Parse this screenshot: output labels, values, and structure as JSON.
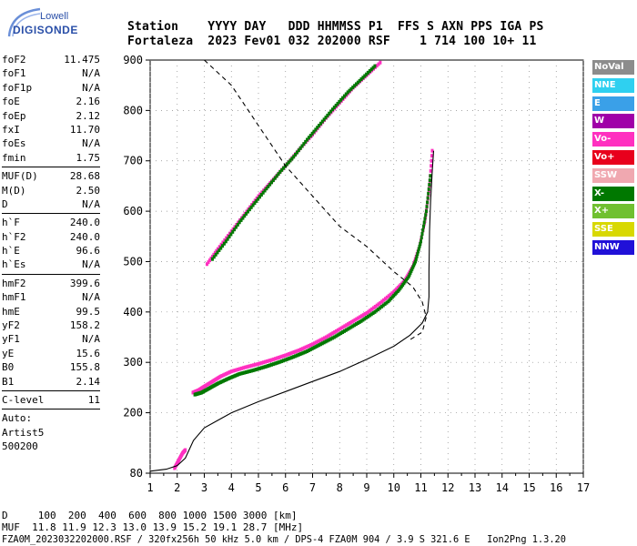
{
  "logo": {
    "top": "Lowell",
    "bottom": "DIGISONDE"
  },
  "header": {
    "line1": "Station    YYYY DAY   DDD HHMMSS P1  FFS S AXN PPS IGA PS",
    "line2": "Fortaleza  2023 Fev01 032 202000 RSF    1 714 100 10+ 11"
  },
  "params": [
    {
      "name": "foF2",
      "value": "11.475"
    },
    {
      "name": "foF1",
      "value": "N/A"
    },
    {
      "name": "foF1p",
      "value": "N/A"
    },
    {
      "name": "foE",
      "value": "2.16"
    },
    {
      "name": "foEp",
      "value": "2.12"
    },
    {
      "name": "fxI",
      "value": "11.70"
    },
    {
      "name": "foEs",
      "value": "N/A"
    },
    {
      "name": "fmin",
      "value": "1.75"
    },
    {
      "sep": true
    },
    {
      "name": "MUF(D)",
      "value": "28.68"
    },
    {
      "name": "M(D)",
      "value": "2.50"
    },
    {
      "name": "D",
      "value": "N/A"
    },
    {
      "sep": true
    },
    {
      "name": "h`F",
      "value": "240.0"
    },
    {
      "name": "h`F2",
      "value": "240.0"
    },
    {
      "name": "h`E",
      "value": "96.6"
    },
    {
      "name": "h`Es",
      "value": "N/A"
    },
    {
      "sep": true
    },
    {
      "name": "hmF2",
      "value": "399.6"
    },
    {
      "name": "hmF1",
      "value": "N/A"
    },
    {
      "name": "hmE",
      "value": "99.5"
    },
    {
      "name": "yF2",
      "value": "158.2"
    },
    {
      "name": "yF1",
      "value": "N/A"
    },
    {
      "name": "yE",
      "value": "15.6"
    },
    {
      "name": "B0",
      "value": "155.8"
    },
    {
      "name": "B1",
      "value": "2.14"
    },
    {
      "sep": true
    },
    {
      "name": "C-level",
      "value": "11"
    },
    {
      "sep": true
    },
    {
      "name": "Auto:",
      "value": ""
    },
    {
      "name": "Artist5",
      "value": ""
    },
    {
      "name": "500200",
      "value": ""
    }
  ],
  "legend": [
    {
      "label": "NoVal",
      "color": "#8c8c8c"
    },
    {
      "label": "NNE",
      "color": "#2fd0f0"
    },
    {
      "label": "E",
      "color": "#3aa0e8"
    },
    {
      "label": "W",
      "color": "#a000a8"
    },
    {
      "label": "Vo-",
      "color": "#ff30c0"
    },
    {
      "label": "Vo+",
      "color": "#e8001c"
    },
    {
      "label": "SSW",
      "color": "#f0a8b0"
    },
    {
      "label": "X-",
      "color": "#007800"
    },
    {
      "label": "X+",
      "color": "#70c030"
    },
    {
      "label": "SSE",
      "color": "#d8d800"
    },
    {
      "label": "NNW",
      "color": "#2010d8"
    }
  ],
  "footer": {
    "dist": "D     100  200  400  600  800 1000 1500 3000 [km]",
    "muf": "MUF  11.8 11.9 12.3 13.0 13.9 15.2 19.1 28.7 [MHz]",
    "file": "FZA0M_2023032202000.RSF / 320fx256h 50 kHz 5.0 km / DPS-4 FZA0M 904 / 3.9 S 321.6 E   Ion2Png 1.3.20"
  },
  "chart_data": {
    "type": "scatter",
    "xlim": [
      1,
      17
    ],
    "ylim": [
      80,
      900
    ],
    "xticks": [
      1,
      2,
      3,
      4,
      5,
      6,
      7,
      8,
      9,
      10,
      11,
      12,
      13,
      14,
      15,
      16,
      17
    ],
    "yticks": [
      80,
      200,
      300,
      400,
      500,
      600,
      700,
      800,
      900
    ],
    "series": [
      {
        "color": "#ff30c0",
        "points": [
          [
            2.58,
            240
          ],
          [
            2.8,
            245
          ],
          [
            3.0,
            252
          ],
          [
            3.3,
            262
          ],
          [
            3.6,
            272
          ],
          [
            4.0,
            282
          ],
          [
            4.5,
            290
          ],
          [
            5.0,
            297
          ],
          [
            5.5,
            305
          ],
          [
            6.0,
            314
          ],
          [
            6.5,
            324
          ],
          [
            7.0,
            336
          ],
          [
            7.5,
            350
          ],
          [
            8.0,
            366
          ],
          [
            8.5,
            382
          ],
          [
            9.0,
            398
          ],
          [
            9.5,
            418
          ],
          [
            10.0,
            440
          ],
          [
            10.4,
            462
          ],
          [
            10.7,
            490
          ],
          [
            10.95,
            530
          ],
          [
            11.15,
            580
          ],
          [
            11.3,
            640
          ],
          [
            11.42,
            720
          ]
        ]
      },
      {
        "color": "#007800",
        "points": [
          [
            2.65,
            236
          ],
          [
            2.9,
            240
          ],
          [
            3.2,
            249
          ],
          [
            3.5,
            258
          ],
          [
            3.9,
            268
          ],
          [
            4.3,
            277
          ],
          [
            4.8,
            284
          ],
          [
            5.3,
            292
          ],
          [
            5.8,
            301
          ],
          [
            6.3,
            311
          ],
          [
            6.8,
            322
          ],
          [
            7.3,
            336
          ],
          [
            7.8,
            350
          ],
          [
            8.3,
            366
          ],
          [
            8.8,
            382
          ],
          [
            9.3,
            400
          ],
          [
            9.8,
            421
          ],
          [
            10.2,
            444
          ],
          [
            10.55,
            470
          ],
          [
            10.8,
            500
          ],
          [
            11.0,
            540
          ],
          [
            11.2,
            600
          ],
          [
            11.35,
            670
          ]
        ]
      },
      {
        "color": "#ff30c0",
        "points": [
          [
            3.1,
            495
          ],
          [
            3.5,
            525
          ],
          [
            4.0,
            560
          ],
          [
            4.5,
            595
          ],
          [
            5.0,
            630
          ],
          [
            5.5,
            660
          ],
          [
            6.0,
            690
          ],
          [
            6.5,
            722
          ],
          [
            7.0,
            752
          ],
          [
            7.5,
            785
          ],
          [
            8.0,
            815
          ],
          [
            8.5,
            845
          ],
          [
            9.0,
            870
          ],
          [
            9.5,
            895
          ]
        ]
      },
      {
        "color": "#007800",
        "points": [
          [
            3.3,
            505
          ],
          [
            3.8,
            540
          ],
          [
            4.3,
            578
          ],
          [
            4.8,
            612
          ],
          [
            5.3,
            645
          ],
          [
            5.8,
            678
          ],
          [
            6.3,
            708
          ],
          [
            6.8,
            742
          ],
          [
            7.3,
            774
          ],
          [
            7.8,
            806
          ],
          [
            8.3,
            836
          ],
          [
            8.8,
            862
          ],
          [
            9.3,
            888
          ]
        ]
      },
      {
        "color": "#ff30c0",
        "points": [
          [
            1.9,
            90
          ],
          [
            2.0,
            100
          ],
          [
            2.1,
            110
          ],
          [
            2.2,
            120
          ],
          [
            2.3,
            126
          ]
        ]
      }
    ],
    "profile_solid": [
      [
        1,
        84
      ],
      [
        1.6,
        88
      ],
      [
        2.0,
        95
      ],
      [
        2.3,
        110
      ],
      [
        2.6,
        145
      ],
      [
        3.0,
        170
      ],
      [
        3.5,
        185
      ],
      [
        4.0,
        200
      ],
      [
        5.0,
        222
      ],
      [
        6.0,
        242
      ],
      [
        7.0,
        262
      ],
      [
        8.0,
        282
      ],
      [
        9.0,
        306
      ],
      [
        10.0,
        332
      ],
      [
        10.6,
        354
      ],
      [
        11.05,
        378
      ],
      [
        11.25,
        400
      ],
      [
        11.3,
        430
      ],
      [
        11.3,
        480
      ],
      [
        11.32,
        560
      ],
      [
        11.36,
        620
      ],
      [
        11.42,
        680
      ],
      [
        11.47,
        720
      ]
    ],
    "profile_dashed": [
      [
        3.0,
        900
      ],
      [
        4.0,
        850
      ],
      [
        5.0,
        770
      ],
      [
        6.0,
        690
      ],
      [
        7.0,
        630
      ],
      [
        8.0,
        570
      ],
      [
        9.0,
        530
      ],
      [
        10.0,
        480
      ],
      [
        10.7,
        450
      ],
      [
        11.05,
        420
      ],
      [
        11.2,
        390
      ],
      [
        11.05,
        360
      ],
      [
        10.6,
        345
      ]
    ]
  }
}
